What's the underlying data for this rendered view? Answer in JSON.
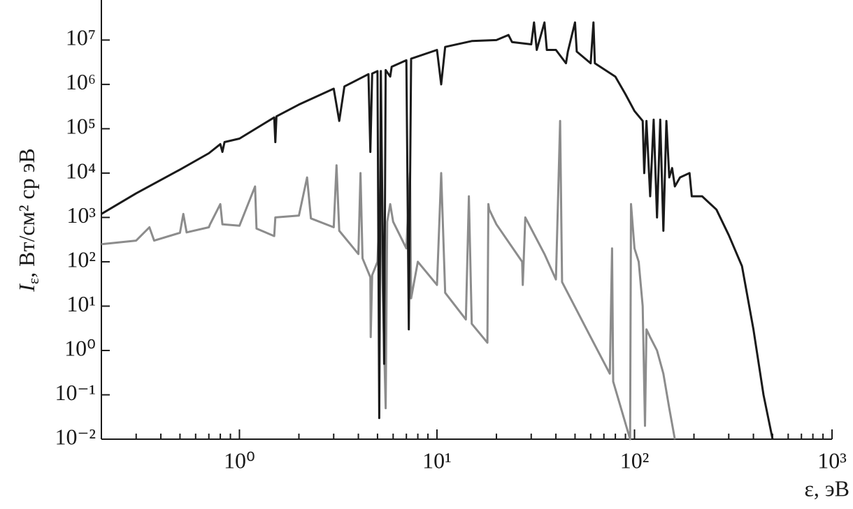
{
  "chart_data": {
    "type": "line",
    "xlabel": "ε, эВ",
    "ylabel": {
      "symbol": "I",
      "subscript": "ε",
      "text": ", Вт/см² ср эВ"
    },
    "xscale": "log",
    "yscale": "log",
    "xlim": [
      0.2,
      1000
    ],
    "ylim": [
      0.01,
      80000000
    ],
    "xticks": [
      {
        "value": 1,
        "label": "10⁰"
      },
      {
        "value": 10,
        "label": "10¹"
      },
      {
        "value": 100,
        "label": "10²"
      },
      {
        "value": 1000,
        "label": "10³"
      }
    ],
    "xminorticks": [
      0.3,
      0.4,
      0.5,
      0.6,
      0.7,
      0.8,
      0.9,
      2,
      3,
      4,
      5,
      6,
      7,
      8,
      9,
      20,
      30,
      40,
      50,
      60,
      70,
      80,
      90,
      200,
      300,
      400,
      500,
      600,
      700,
      800,
      900
    ],
    "yticks": [
      {
        "value": 0.01,
        "label": "10⁻²"
      },
      {
        "value": 0.1,
        "label": "10⁻¹"
      },
      {
        "value": 1,
        "label": "10⁰"
      },
      {
        "value": 10,
        "label": "10¹"
      },
      {
        "value": 100,
        "label": "10²"
      },
      {
        "value": 1000,
        "label": "10³"
      },
      {
        "value": 10000,
        "label": "10⁴"
      },
      {
        "value": 100000,
        "label": "10⁵"
      },
      {
        "value": 1000000,
        "label": "10⁶"
      },
      {
        "value": 10000000,
        "label": "10⁷"
      }
    ],
    "series": [
      {
        "color": "#1a1a1a",
        "x": [
          0.2,
          0.3,
          0.5,
          0.7,
          0.8,
          0.82,
          0.84,
          1,
          1.5,
          1.52,
          1.54,
          2,
          3,
          3.2,
          3.4,
          4,
          4.5,
          4.6,
          4.7,
          5,
          5.1,
          5.2,
          5.4,
          5.5,
          5.8,
          5.9,
          7,
          7.2,
          7.4,
          10,
          10.5,
          11,
          15,
          20,
          23,
          24,
          30,
          31,
          32,
          35,
          36,
          40,
          45,
          46,
          50,
          51,
          60,
          62,
          63,
          80,
          90,
          100,
          110,
          112,
          115,
          120,
          125,
          130,
          135,
          140,
          145,
          150,
          155,
          160,
          170,
          190,
          195,
          220,
          260,
          300,
          350,
          400,
          450,
          500
        ],
        "values": [
          1200,
          3500,
          12000,
          28000,
          45000,
          30000,
          50000,
          60000,
          180000,
          50000,
          190000,
          350000,
          800000,
          150000,
          900000,
          1300000,
          1700000,
          30000,
          1750000,
          2000000,
          0.03,
          2000000,
          0.5,
          2100000,
          1500000,
          2500000,
          3500000,
          3,
          3800000,
          6000000,
          1000000,
          7000000,
          9500000,
          10000000,
          13000000,
          9000000,
          8000000,
          25000000,
          6000000,
          25000000,
          6000000,
          6000000,
          3000000,
          5500000,
          25000000,
          5500000,
          3000000,
          25000000,
          3000000,
          1500000,
          600000,
          250000,
          150000,
          10000,
          150000,
          3000,
          160000,
          1000,
          160000,
          500,
          150000,
          8000,
          13000,
          5000,
          8000,
          10000,
          3000,
          3000,
          1500,
          400,
          80,
          3,
          0.1,
          0.01
        ]
      },
      {
        "color": "#8c8c8c",
        "x": [
          0.2,
          0.3,
          0.35,
          0.37,
          0.5,
          0.52,
          0.54,
          0.7,
          0.71,
          0.8,
          0.82,
          1,
          1.2,
          1.22,
          1.5,
          1.52,
          2,
          2.2,
          2.3,
          3,
          3.1,
          3.2,
          4,
          4.1,
          4.2,
          4.6,
          4.62,
          4.7,
          5,
          5.2,
          5.3,
          5.5,
          5.6,
          5.8,
          6,
          7,
          7.3,
          7.4,
          8,
          10,
          10.5,
          11,
          14,
          14.5,
          15,
          18,
          18.2,
          18.4,
          20,
          27,
          27.2,
          28,
          35,
          40,
          42,
          43,
          60,
          75,
          77,
          78,
          95,
          96,
          100,
          105,
          110,
          113,
          115,
          120,
          130,
          140,
          150,
          160
        ],
        "values": [
          250,
          300,
          600,
          300,
          450,
          1200,
          460,
          600,
          700,
          2000,
          700,
          650,
          5000,
          560,
          380,
          1000,
          1100,
          8000,
          950,
          600,
          15000,
          500,
          150,
          10000,
          120,
          45,
          2,
          50,
          100,
          10000,
          40,
          0.05,
          800,
          2000,
          800,
          200,
          10000,
          15,
          100,
          30,
          10000,
          20,
          5,
          3000,
          4,
          1.5,
          2000,
          1500,
          700,
          100,
          30,
          1000,
          150,
          40,
          150000,
          35,
          2,
          0.3,
          200,
          0.2,
          0.01,
          2000,
          200,
          100,
          10,
          0.02,
          3,
          2,
          1,
          0.3,
          0.05,
          0.01
        ]
      }
    ]
  }
}
